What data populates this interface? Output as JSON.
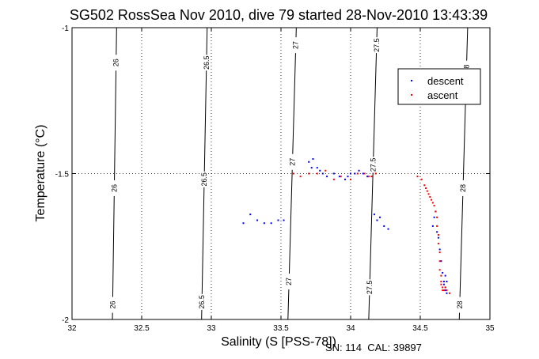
{
  "chart_data": {
    "type": "scatter",
    "title": "SG502 RossSea Nov 2010, dive 79 started 28-Nov-2010 13:43:39",
    "xlabel": "Salinity (S [PSS-78])",
    "ylabel": "Temperature (°C)",
    "xlim": [
      32,
      35
    ],
    "ylim": [
      -2,
      -1
    ],
    "xticks": [
      "32",
      "32.5",
      "33",
      "33.5",
      "34",
      "34.5",
      "35"
    ],
    "yticks": [
      "-2",
      "-1.5",
      "-1"
    ],
    "grid": true,
    "legend_position": "top-right",
    "footer": "SN: 114  CAL: 39897",
    "density_contours": [
      {
        "label": "26",
        "x_bottom": 32.29,
        "x_top": 32.32,
        "label_y": [
          -1.12,
          -1.55,
          -1.95
        ]
      },
      {
        "label": "26.5",
        "x_bottom": 32.93,
        "x_top": 32.97,
        "label_y": [
          -1.12,
          -1.52,
          -1.94
        ]
      },
      {
        "label": "27",
        "x_bottom": 33.55,
        "x_top": 33.61,
        "label_y": [
          -1.06,
          -1.46,
          -1.87
        ]
      },
      {
        "label": "27.5",
        "x_bottom": 34.13,
        "x_top": 34.19,
        "label_y": [
          -1.06,
          -1.47,
          -1.89
        ]
      },
      {
        "label": "28",
        "x_bottom": 34.78,
        "x_top": 34.84,
        "label_y": [
          -1.14,
          -1.55,
          -1.95
        ]
      }
    ],
    "series": [
      {
        "name": "descent",
        "color": "#0000ff",
        "x": [
          33.23,
          33.28,
          33.33,
          33.38,
          33.43,
          33.48,
          33.52,
          33.7,
          33.72,
          33.73,
          33.76,
          33.78,
          33.8,
          33.83,
          33.88,
          33.92,
          33.96,
          33.98,
          34.0,
          34.03,
          34.06,
          34.09,
          34.12,
          34.17,
          34.19,
          34.21,
          34.24,
          34.27,
          34.59,
          34.6,
          34.61,
          34.62,
          34.63,
          34.64,
          34.65,
          34.66,
          34.67,
          34.67,
          34.68,
          34.68,
          34.68,
          34.69,
          34.69
        ],
        "y": [
          -1.67,
          -1.64,
          -1.66,
          -1.67,
          -1.67,
          -1.66,
          -1.66,
          -1.46,
          -1.48,
          -1.45,
          -1.48,
          -1.49,
          -1.5,
          -1.51,
          -1.5,
          -1.51,
          -1.52,
          -1.51,
          -1.5,
          -1.5,
          -1.49,
          -1.5,
          -1.51,
          -1.64,
          -1.66,
          -1.65,
          -1.68,
          -1.69,
          -1.68,
          -1.65,
          -1.63,
          -1.7,
          -1.72,
          -1.76,
          -1.8,
          -1.84,
          -1.87,
          -1.88,
          -1.85,
          -1.89,
          -1.9,
          -1.87,
          -1.91
        ]
      },
      {
        "name": "ascent",
        "color": "#ff0000",
        "x": [
          33.59,
          33.64,
          33.7,
          33.76,
          33.82,
          33.88,
          33.93,
          34.0,
          34.05,
          34.1,
          34.13,
          34.15,
          34.18,
          34.48,
          34.51,
          34.53,
          34.54,
          34.55,
          34.56,
          34.57,
          34.58,
          34.59,
          34.6,
          34.61,
          34.62,
          34.62,
          34.63,
          34.63,
          34.64,
          34.64,
          34.64,
          34.65,
          34.65,
          34.65,
          34.66,
          34.66,
          34.67,
          34.68,
          34.69,
          34.71
        ],
        "y": [
          -1.5,
          -1.51,
          -1.5,
          -1.5,
          -1.49,
          -1.52,
          -1.51,
          -1.52,
          -1.5,
          -1.5,
          -1.51,
          -1.51,
          -1.5,
          -1.51,
          -1.52,
          -1.54,
          -1.55,
          -1.56,
          -1.57,
          -1.58,
          -1.59,
          -1.6,
          -1.61,
          -1.63,
          -1.65,
          -1.68,
          -1.71,
          -1.74,
          -1.77,
          -1.8,
          -1.83,
          -1.85,
          -1.87,
          -1.88,
          -1.89,
          -1.9,
          -1.9,
          -1.89,
          -1.9,
          -1.91
        ]
      }
    ]
  }
}
